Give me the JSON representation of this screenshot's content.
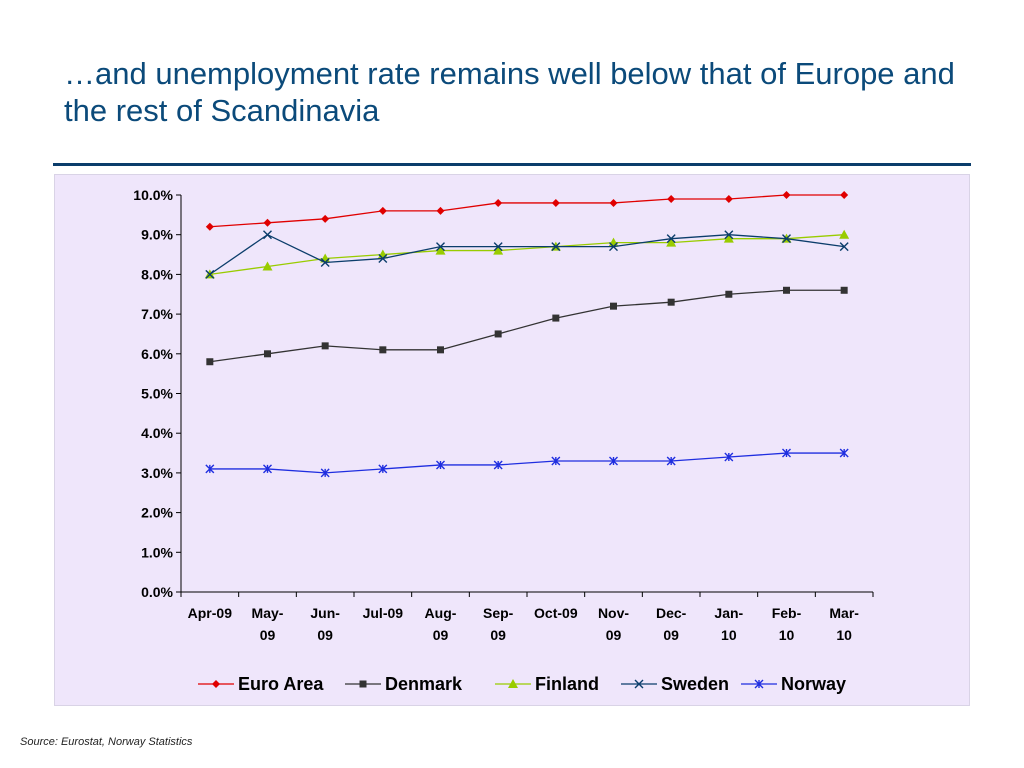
{
  "title": "…and unemployment rate remains well below that of Europe and the rest of Scandinavia",
  "source": "Source: Eurostat, Norway Statistics",
  "chart_data": {
    "type": "line",
    "title": "",
    "xlabel": "",
    "ylabel": "",
    "categories": [
      [
        "Apr-09"
      ],
      [
        "May-",
        "09"
      ],
      [
        "Jun-",
        "09"
      ],
      [
        "Jul-09"
      ],
      [
        "Aug-",
        "09"
      ],
      [
        "Sep-",
        "09"
      ],
      [
        "Oct-09"
      ],
      [
        "Nov-",
        "09"
      ],
      [
        "Dec-",
        "09"
      ],
      [
        "Jan-",
        "10"
      ],
      [
        "Feb-",
        "10"
      ],
      [
        "Mar-",
        "10"
      ]
    ],
    "ylim": [
      0,
      10
    ],
    "ytick_labels": [
      "0.0%",
      "1.0%",
      "2.0%",
      "3.0%",
      "4.0%",
      "5.0%",
      "6.0%",
      "7.0%",
      "8.0%",
      "9.0%",
      "10.0%"
    ],
    "grid": false,
    "legend_position": "bottom",
    "series": [
      {
        "name": "Euro Area",
        "color": "#e00000",
        "marker": "diamond",
        "values": [
          9.2,
          9.3,
          9.4,
          9.6,
          9.6,
          9.8,
          9.8,
          9.8,
          9.9,
          9.9,
          10.0,
          10.0
        ]
      },
      {
        "name": "Denmark",
        "color": "#333333",
        "marker": "square",
        "values": [
          5.8,
          6.0,
          6.2,
          6.1,
          6.1,
          6.5,
          6.9,
          7.2,
          7.3,
          7.5,
          7.6,
          7.6
        ]
      },
      {
        "name": "Finland",
        "color": "#99cc00",
        "marker": "triangle",
        "values": [
          8.0,
          8.2,
          8.4,
          8.5,
          8.6,
          8.6,
          8.7,
          8.8,
          8.8,
          8.9,
          8.9,
          9.0
        ]
      },
      {
        "name": "Sweden",
        "color": "#0b3d6b",
        "marker": "x",
        "values": [
          8.0,
          9.0,
          8.3,
          8.4,
          8.7,
          8.7,
          8.7,
          8.7,
          8.9,
          9.0,
          8.9,
          8.7
        ]
      },
      {
        "name": "Norway",
        "color": "#1f2ee0",
        "marker": "star",
        "values": [
          3.1,
          3.1,
          3.0,
          3.1,
          3.2,
          3.2,
          3.3,
          3.3,
          3.3,
          3.4,
          3.5,
          3.5
        ]
      }
    ]
  }
}
